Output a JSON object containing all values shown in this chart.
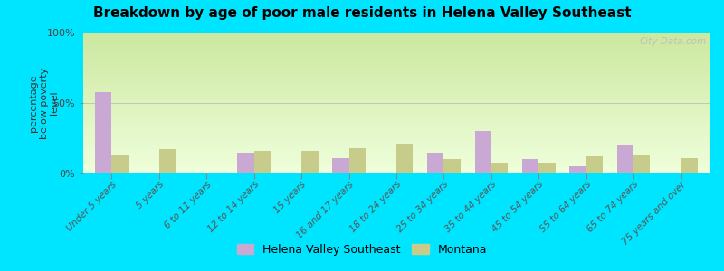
{
  "title": "Breakdown by age of poor male residents in Helena Valley Southeast",
  "ylabel": "percentage\nbelow poverty\nlevel",
  "categories": [
    "Under 5 years",
    "5 years",
    "6 to 11 years",
    "12 to 14 years",
    "15 years",
    "16 and 17 years",
    "18 to 24 years",
    "25 to 34 years",
    "35 to 44 years",
    "45 to 54 years",
    "55 to 64 years",
    "65 to 74 years",
    "75 years and over"
  ],
  "helena_values": [
    58,
    0,
    0,
    15,
    0,
    11,
    0,
    15,
    30,
    10,
    5,
    20,
    0
  ],
  "montana_values": [
    13,
    17,
    0,
    16,
    16,
    18,
    21,
    10,
    8,
    8,
    12,
    13,
    11
  ],
  "helena_color": "#c9a8d4",
  "montana_color": "#c8cc8a",
  "plot_bg_top": "#cce8a0",
  "plot_bg_bottom": "#efffdb",
  "outer_bg": "#00e5ff",
  "ylim": [
    0,
    100
  ],
  "yticks": [
    0,
    50,
    100
  ],
  "ytick_labels": [
    "0%",
    "50%",
    "100%"
  ],
  "legend_labels": [
    "Helena Valley Southeast",
    "Montana"
  ],
  "watermark": "City-Data.com",
  "bar_width": 0.35
}
